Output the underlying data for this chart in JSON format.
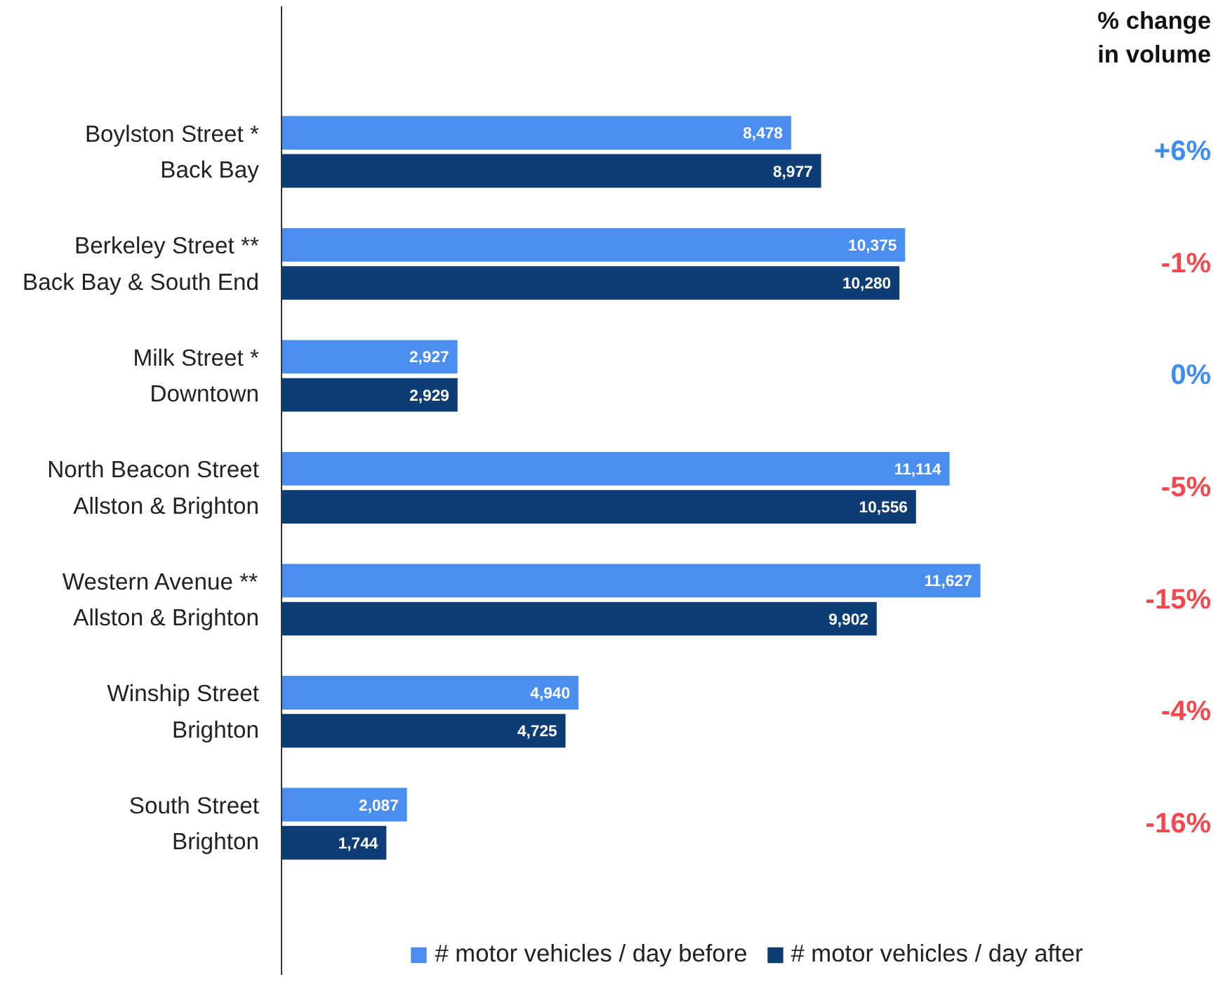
{
  "chart_data": {
    "type": "bar",
    "orientation": "horizontal",
    "categories": [
      "Boylston Street *\nBack Bay",
      "Berkeley Street **\nBack Bay & South End",
      "Milk Street *\nDowntown",
      "North Beacon Street\nAllston & Brighton",
      "Western Avenue **\nAllston & Brighton",
      "Winship Street\nBrighton",
      "South Street\nBrighton"
    ],
    "series": [
      {
        "name": "# motor vehicles / day before",
        "color": "#4a8ef0",
        "values": [
          8478,
          10375,
          2927,
          11114,
          11627,
          4940,
          2087
        ],
        "value_labels": [
          "8,478",
          "10,375",
          "2,927",
          "11,114",
          "11,627",
          "4,940",
          "2,087"
        ]
      },
      {
        "name": "# motor vehicles / day after",
        "color": "#0e3d75",
        "values": [
          8977,
          10280,
          2929,
          10556,
          9902,
          4725,
          1744
        ],
        "value_labels": [
          "8,977",
          "10,280",
          "2,929",
          "10,556",
          "9,902",
          "4,725",
          "1,744"
        ]
      }
    ],
    "annotations": [
      "% change\nin volume",
      "+6%",
      "-1%",
      "0%",
      "-5%",
      "-15%",
      "-4%",
      "-16%"
    ],
    "legend": "bottom",
    "grid": false
  }
}
